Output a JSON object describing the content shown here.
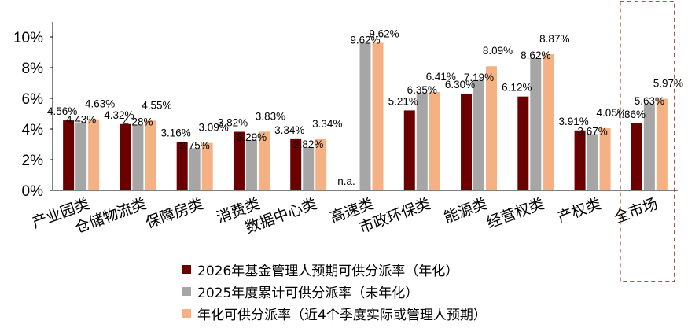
{
  "chart_data": {
    "type": "bar",
    "categories": [
      "产业园类",
      "仓储物流类",
      "保障房类",
      "消费类",
      "数据中心类",
      "高速类",
      "市政环保类",
      "能源类",
      "经营权类",
      "产权类",
      "全市场"
    ],
    "series": [
      {
        "name": "2026年基金管理人预期可供分派率（年化）",
        "color": "#6b0000",
        "values": [
          4.56,
          4.32,
          3.16,
          3.82,
          3.34,
          null,
          5.21,
          6.3,
          6.12,
          3.91,
          4.36
        ],
        "labels": [
          "4.56%",
          "4.32%",
          "3.16%",
          "3.82%",
          "3.34%",
          "n.a.",
          "5.21%",
          "6.30%",
          "6.12%",
          "3.91%",
          "4.36%"
        ]
      },
      {
        "name": "2025年度累计可供分派率（未年化）",
        "color": "#a6a6a6",
        "values": [
          4.43,
          4.28,
          2.75,
          3.29,
          2.82,
          9.62,
          6.35,
          7.19,
          8.62,
          3.67,
          5.63
        ],
        "labels": [
          "4.43%",
          "4.28%",
          "2.75%",
          "3.29%",
          "2.82%",
          "9.62%",
          "6.35%",
          "7.19%",
          "8.62%",
          "3.67%",
          "5.63%"
        ]
      },
      {
        "name": "年化可供分派率（近4个季度实际或管理人预期）",
        "color": "#f4b183",
        "values": [
          4.63,
          4.55,
          3.09,
          3.83,
          3.34,
          9.62,
          6.41,
          8.09,
          8.87,
          4.05,
          5.97
        ],
        "labels": [
          "4.63%",
          "4.55%",
          "3.09%",
          "3.83%",
          "3.34%",
          "9.62%",
          "6.41%",
          "8.09%",
          "8.87%",
          "4.05%",
          "5.97%"
        ]
      }
    ],
    "y_ticks": [
      "0%",
      "2%",
      "4%",
      "6%",
      "8%",
      "10%"
    ],
    "ylim": [
      0,
      10.5
    ],
    "grid": false,
    "legend_position": "bottom",
    "highlight": {
      "category": "全市场",
      "style": "dashed-box",
      "color": "#8b1a1a"
    }
  }
}
